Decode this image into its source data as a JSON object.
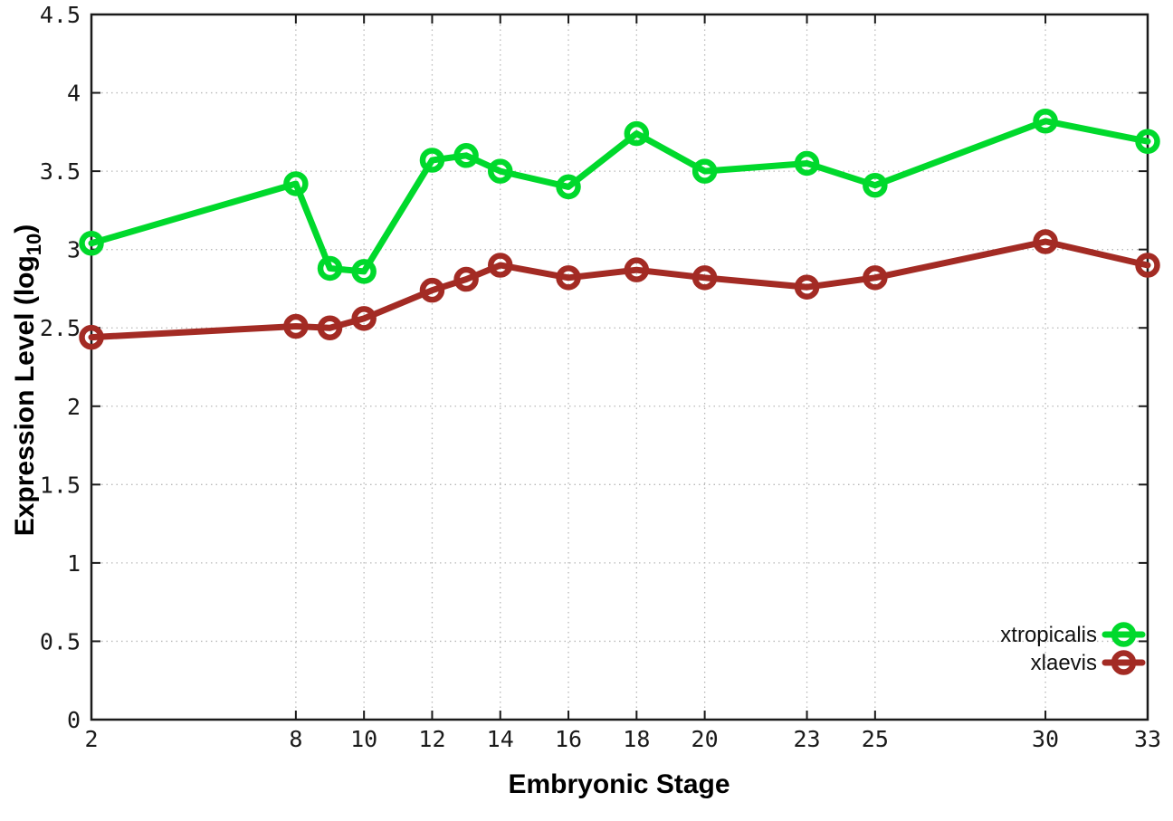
{
  "chart_data": {
    "type": "line",
    "title": "",
    "xlabel": "Embryonic Stage",
    "ylabel": "Expression Level (log10)",
    "ylabel_parts": {
      "main": "Expression Level (log",
      "sub": "10",
      "tail": ")"
    },
    "x": [
      2,
      8,
      9,
      10,
      12,
      13,
      14,
      16,
      18,
      20,
      23,
      25,
      30,
      33
    ],
    "series": [
      {
        "name": "xtropicalis",
        "color": "#00d92c",
        "marker": "open-circle",
        "values": [
          3.04,
          3.42,
          2.88,
          2.86,
          3.57,
          3.6,
          3.5,
          3.4,
          3.74,
          3.5,
          3.55,
          3.41,
          3.82,
          3.69
        ]
      },
      {
        "name": "xlaevis",
        "color": "#a32b24",
        "marker": "open-circle",
        "values": [
          2.44,
          2.51,
          2.5,
          2.56,
          2.74,
          2.81,
          2.9,
          2.82,
          2.87,
          2.82,
          2.76,
          2.82,
          3.05,
          2.9
        ]
      }
    ],
    "xlim": [
      2,
      33
    ],
    "ylim": [
      0,
      4.5
    ],
    "xticks": [
      2,
      8,
      10,
      12,
      14,
      16,
      18,
      20,
      23,
      25,
      30,
      33
    ],
    "yticks": [
      0,
      0.5,
      1,
      1.5,
      2,
      2.5,
      3,
      3.5,
      4,
      4.5
    ],
    "ytick_labels": [
      "0",
      "0.5",
      "1",
      "1.5",
      "2",
      "2.5",
      "3",
      "3.5",
      "4",
      "4.5"
    ],
    "grid": "dotted",
    "legend_position": "bottom-right",
    "colors": {
      "grid": "#b8b8b8",
      "axis": "#1a1a1a",
      "background": "#ffffff"
    }
  }
}
